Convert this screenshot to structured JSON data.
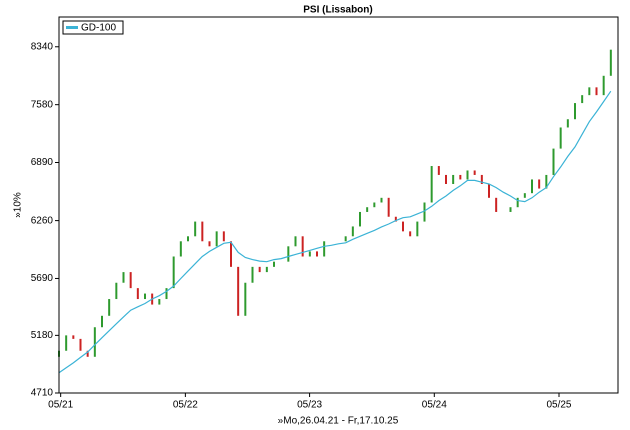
{
  "chart_data": {
    "type": "candle",
    "title": "PSI (Lissabon)",
    "y_label": "»10%",
    "x_label": "»Mo,26.04.21 - Fr,17.10.25",
    "log_scale": true,
    "grid": false,
    "legend": "top-left",
    "xlim": [
      0,
      234
    ],
    "xticks": [
      {
        "value": 0.7,
        "label": "05/21"
      },
      {
        "value": 52.9,
        "label": "05/22"
      },
      {
        "value": 104.9,
        "label": "05/23"
      },
      {
        "value": 157.1,
        "label": "05/24"
      },
      {
        "value": 209.3,
        "label": "05/25"
      }
    ],
    "ylim": [
      4710,
      8760
    ],
    "yticks": [
      4710,
      5180,
      5690,
      6260,
      6890,
      7580,
      8340
    ],
    "x": [
      0,
      3,
      6,
      9,
      12,
      15,
      18,
      21,
      24,
      27,
      30,
      33,
      36,
      39,
      42,
      45,
      48,
      51,
      54,
      57,
      60,
      63,
      66,
      69,
      72,
      75,
      78,
      81,
      84,
      87,
      90,
      93,
      96,
      99,
      102,
      105,
      108,
      111,
      114,
      117,
      120,
      123,
      126,
      129,
      132,
      135,
      138,
      141,
      144,
      147,
      150,
      153,
      156,
      159,
      162,
      165,
      168,
      171,
      174,
      177,
      180,
      183,
      186,
      189,
      192,
      195,
      198,
      201,
      204,
      207,
      210,
      213,
      216,
      219,
      222,
      225,
      228,
      231
    ],
    "up_color": "#2e9a2e",
    "down_color": "#cc2222",
    "open": [
      5000,
      5050,
      5180,
      5150,
      5050,
      5000,
      5250,
      5350,
      5500,
      5650,
      5750,
      5600,
      5500,
      5550,
      5450,
      5500,
      5600,
      5900,
      6050,
      6100,
      6250,
      6050,
      6000,
      6150,
      6050,
      5800,
      5350,
      5650,
      5800,
      5750,
      5800,
      5850,
      5850,
      6000,
      6100,
      5900,
      5950,
      5900,
      6050,
      6050,
      6050,
      6100,
      6200,
      6350,
      6400,
      6450,
      6500,
      6300,
      6250,
      6150,
      6100,
      6250,
      6450,
      6850,
      6750,
      6650,
      6750,
      6700,
      6800,
      6750,
      6650,
      6500,
      6350,
      6350,
      6400,
      6500,
      6550,
      6700,
      6600,
      6750,
      7050,
      7300,
      7400,
      7600,
      7700,
      7800,
      7700,
      7950
    ],
    "close": [
      5050,
      5180,
      5150,
      5050,
      5000,
      5250,
      5350,
      5500,
      5650,
      5750,
      5600,
      5500,
      5550,
      5450,
      5500,
      5600,
      5900,
      6050,
      6100,
      6250,
      6050,
      6000,
      6150,
      6050,
      5800,
      5350,
      5650,
      5800,
      5750,
      5800,
      5850,
      5850,
      6000,
      6100,
      5900,
      5950,
      5900,
      6050,
      6050,
      6050,
      6100,
      6200,
      6350,
      6400,
      6450,
      6500,
      6300,
      6250,
      6150,
      6100,
      6250,
      6450,
      6850,
      6750,
      6650,
      6750,
      6700,
      6800,
      6750,
      6650,
      6500,
      6350,
      6350,
      6400,
      6500,
      6550,
      6700,
      6600,
      6750,
      7050,
      7300,
      7400,
      7600,
      7700,
      7800,
      7700,
      7950,
      8300
    ],
    "series": [
      {
        "name": "GD-100",
        "color": "#3bb3d6",
        "values": [
          4870,
          4910,
          4950,
          4995,
          5040,
          5100,
          5160,
          5220,
          5280,
          5340,
          5400,
          5430,
          5460,
          5500,
          5530,
          5570,
          5620,
          5690,
          5760,
          5830,
          5900,
          5950,
          5990,
          6030,
          6040,
          5940,
          5890,
          5870,
          5855,
          5850,
          5870,
          5880,
          5900,
          5920,
          5940,
          5960,
          5980,
          6000,
          6010,
          6025,
          6035,
          6070,
          6100,
          6130,
          6160,
          6195,
          6225,
          6260,
          6290,
          6300,
          6330,
          6360,
          6410,
          6470,
          6520,
          6580,
          6630,
          6690,
          6690,
          6670,
          6650,
          6610,
          6560,
          6520,
          6470,
          6460,
          6500,
          6560,
          6610,
          6730,
          6840,
          6960,
          7070,
          7220,
          7370,
          7490,
          7620,
          7750
        ]
      }
    ]
  }
}
